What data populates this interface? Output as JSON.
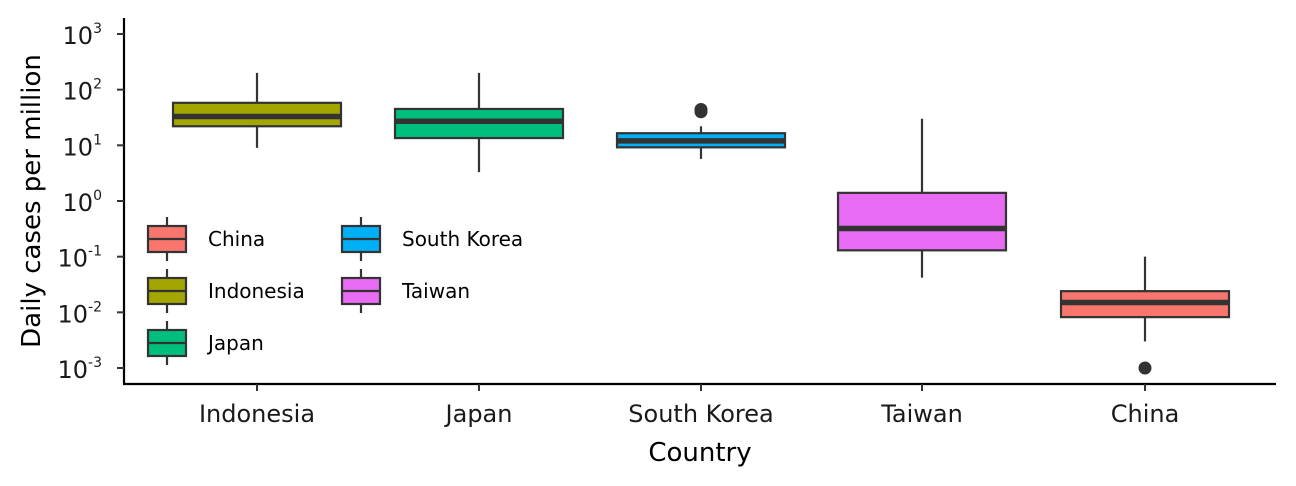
{
  "chart_data": {
    "type": "boxplot",
    "title": "",
    "xlabel": "Country",
    "ylabel": "Daily cases per million",
    "yscale": "log10",
    "ylim": [
      0.0005,
      1800
    ],
    "yticks": [
      {
        "value": 0.001,
        "base": "10",
        "exp": "-3"
      },
      {
        "value": 0.01,
        "base": "10",
        "exp": "-2"
      },
      {
        "value": 0.1,
        "base": "10",
        "exp": "-1"
      },
      {
        "value": 1,
        "base": "10",
        "exp": "0"
      },
      {
        "value": 10,
        "base": "10",
        "exp": "1"
      },
      {
        "value": 100,
        "base": "10",
        "exp": "2"
      },
      {
        "value": 1000,
        "base": "10",
        "exp": "3"
      }
    ],
    "categories": [
      "Indonesia",
      "Japan",
      "South Korea",
      "Taiwan",
      "China"
    ],
    "boxes": [
      {
        "name": "Indonesia",
        "color": "#A3A500",
        "min": 9,
        "q1": 22,
        "median": 33,
        "q3": 58,
        "max": 200,
        "outliers": []
      },
      {
        "name": "Japan",
        "color": "#00BF7D",
        "min": 3.3,
        "q1": 13.5,
        "median": 27,
        "q3": 45,
        "max": 200,
        "outliers": []
      },
      {
        "name": "South Korea",
        "color": "#00B0F6",
        "min": 5.7,
        "q1": 9.2,
        "median": 12,
        "q3": 16.5,
        "max": 22,
        "outliers": [
          40,
          44
        ]
      },
      {
        "name": "Taiwan",
        "color": "#E76BF3",
        "min": 0.042,
        "q1": 0.13,
        "median": 0.32,
        "q3": 1.4,
        "max": 30,
        "outliers": []
      },
      {
        "name": "China",
        "color": "#F8766D",
        "min": 0.003,
        "q1": 0.0082,
        "median": 0.015,
        "q3": 0.024,
        "max": 0.1,
        "outliers": [
          0.001
        ]
      }
    ],
    "legend": {
      "placement": "inside-left",
      "entries": [
        {
          "label": "China",
          "color": "#F8766D"
        },
        {
          "label": "Indonesia",
          "color": "#A3A500"
        },
        {
          "label": "Japan",
          "color": "#00BF7D"
        },
        {
          "label": "South Korea",
          "color": "#00B0F6"
        },
        {
          "label": "Taiwan",
          "color": "#E76BF3"
        }
      ]
    }
  }
}
